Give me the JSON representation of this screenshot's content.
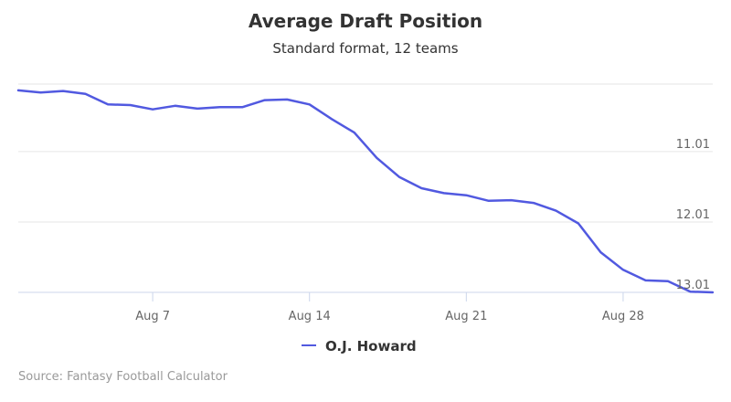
{
  "chart_data": {
    "type": "line",
    "title": "Average Draft Position",
    "subtitle": "Standard format, 12 teams",
    "xlabel": "",
    "ylabel": "",
    "x": [
      "Aug 1",
      "Aug 2",
      "Aug 3",
      "Aug 4",
      "Aug 5",
      "Aug 6",
      "Aug 7",
      "Aug 8",
      "Aug 9",
      "Aug 10",
      "Aug 11",
      "Aug 12",
      "Aug 13",
      "Aug 14",
      "Aug 15",
      "Aug 16",
      "Aug 17",
      "Aug 18",
      "Aug 19",
      "Aug 20",
      "Aug 21",
      "Aug 22",
      "Aug 23",
      "Aug 24",
      "Aug 25",
      "Aug 26",
      "Aug 27",
      "Aug 28",
      "Aug 29",
      "Aug 30",
      "Aug 31",
      "Sep 1"
    ],
    "x_ticks": [
      "Aug 7",
      "Aug 14",
      "Aug 21",
      "Aug 28"
    ],
    "y_ticks": [
      11.01,
      12.01,
      13.01
    ],
    "y_tick_labels": [
      "11.01",
      "12.01",
      "13.01"
    ],
    "ylim": [
      13.01,
      10.09
    ],
    "y_reversed": true,
    "grid": true,
    "legend_position": "bottom-center",
    "series": [
      {
        "name": "O.J. Howard",
        "color": "#5159e0",
        "values": [
          10.14,
          10.17,
          10.15,
          10.19,
          10.34,
          10.35,
          10.41,
          10.36,
          10.4,
          10.38,
          10.38,
          10.28,
          10.27,
          10.34,
          10.55,
          10.74,
          11.1,
          11.37,
          11.53,
          11.6,
          11.63,
          11.71,
          11.7,
          11.74,
          11.85,
          12.03,
          12.44,
          12.69,
          12.84,
          12.85,
          13.0,
          13.01
        ]
      }
    ]
  },
  "credits": {
    "text": "Source: Fantasy Football Calculator"
  }
}
